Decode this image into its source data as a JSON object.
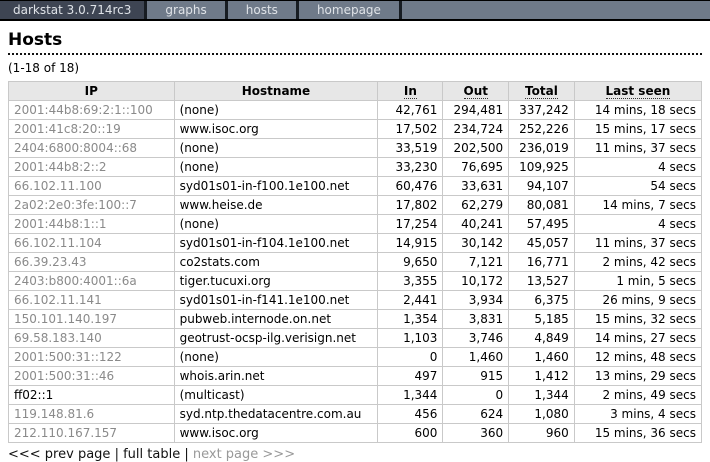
{
  "nav": {
    "brand": "darkstat 3.0.714rc3",
    "tabs": [
      {
        "label": "graphs"
      },
      {
        "label": "hosts"
      },
      {
        "label": "homepage"
      }
    ]
  },
  "page": {
    "title": "Hosts",
    "range_label": "(1-18 of 18)"
  },
  "table": {
    "headers": {
      "ip": "IP",
      "hostname": "Hostname",
      "in": "In",
      "out": "Out",
      "total": "Total",
      "last_seen": "Last seen"
    },
    "rows": [
      {
        "ip": "2001:44b8:69:2:1::100",
        "ip_link": true,
        "hostname": "(none)",
        "in": "42,761",
        "out": "294,481",
        "total": "337,242",
        "last_seen": "14 mins, 18 secs"
      },
      {
        "ip": "2001:41c8:20::19",
        "ip_link": true,
        "hostname": "www.isoc.org",
        "in": "17,502",
        "out": "234,724",
        "total": "252,226",
        "last_seen": "15 mins, 17 secs"
      },
      {
        "ip": "2404:6800:8004::68",
        "ip_link": true,
        "hostname": "(none)",
        "in": "33,519",
        "out": "202,500",
        "total": "236,019",
        "last_seen": "11 mins, 37 secs"
      },
      {
        "ip": "2001:44b8:2::2",
        "ip_link": true,
        "hostname": "(none)",
        "in": "33,230",
        "out": "76,695",
        "total": "109,925",
        "last_seen": "4 secs"
      },
      {
        "ip": "66.102.11.100",
        "ip_link": true,
        "hostname": "syd01s01-in-f100.1e100.net",
        "in": "60,476",
        "out": "33,631",
        "total": "94,107",
        "last_seen": "54 secs"
      },
      {
        "ip": "2a02:2e0:3fe:100::7",
        "ip_link": true,
        "hostname": "www.heise.de",
        "in": "17,802",
        "out": "62,279",
        "total": "80,081",
        "last_seen": "14 mins, 7 secs"
      },
      {
        "ip": "2001:44b8:1::1",
        "ip_link": true,
        "hostname": "(none)",
        "in": "17,254",
        "out": "40,241",
        "total": "57,495",
        "last_seen": "4 secs"
      },
      {
        "ip": "66.102.11.104",
        "ip_link": true,
        "hostname": "syd01s01-in-f104.1e100.net",
        "in": "14,915",
        "out": "30,142",
        "total": "45,057",
        "last_seen": "11 mins, 37 secs"
      },
      {
        "ip": "66.39.23.43",
        "ip_link": true,
        "hostname": "co2stats.com",
        "in": "9,650",
        "out": "7,121",
        "total": "16,771",
        "last_seen": "2 mins, 42 secs"
      },
      {
        "ip": "2403:b800:4001::6a",
        "ip_link": true,
        "hostname": "tiger.tucuxi.org",
        "in": "3,355",
        "out": "10,172",
        "total": "13,527",
        "last_seen": "1 min, 5 secs"
      },
      {
        "ip": "66.102.11.141",
        "ip_link": true,
        "hostname": "syd01s01-in-f141.1e100.net",
        "in": "2,441",
        "out": "3,934",
        "total": "6,375",
        "last_seen": "26 mins, 9 secs"
      },
      {
        "ip": "150.101.140.197",
        "ip_link": true,
        "hostname": "pubweb.internode.on.net",
        "in": "1,354",
        "out": "3,831",
        "total": "5,185",
        "last_seen": "15 mins, 32 secs"
      },
      {
        "ip": "69.58.183.140",
        "ip_link": true,
        "hostname": "geotrust-ocsp-ilg.verisign.net",
        "in": "1,103",
        "out": "3,746",
        "total": "4,849",
        "last_seen": "14 mins, 27 secs"
      },
      {
        "ip": "2001:500:31::122",
        "ip_link": true,
        "hostname": "(none)",
        "in": "0",
        "out": "1,460",
        "total": "1,460",
        "last_seen": "12 mins, 48 secs"
      },
      {
        "ip": "2001:500:31::46",
        "ip_link": true,
        "hostname": "whois.arin.net",
        "in": "497",
        "out": "915",
        "total": "1,412",
        "last_seen": "13 mins, 29 secs"
      },
      {
        "ip": "ff02::1",
        "ip_link": false,
        "hostname": "(multicast)",
        "in": "1,344",
        "out": "0",
        "total": "1,344",
        "last_seen": "2 mins, 49 secs"
      },
      {
        "ip": "119.148.81.6",
        "ip_link": true,
        "hostname": "syd.ntp.thedatacentre.com.au",
        "in": "456",
        "out": "624",
        "total": "1,080",
        "last_seen": "3 mins, 4 secs"
      },
      {
        "ip": "212.110.167.157",
        "ip_link": true,
        "hostname": "www.isoc.org",
        "in": "600",
        "out": "360",
        "total": "960",
        "last_seen": "15 mins, 36 secs"
      }
    ]
  },
  "pagination": {
    "prev_label": "<<< prev page",
    "separator": "|",
    "full_label": "full table",
    "next_label": "next page >>>"
  }
}
